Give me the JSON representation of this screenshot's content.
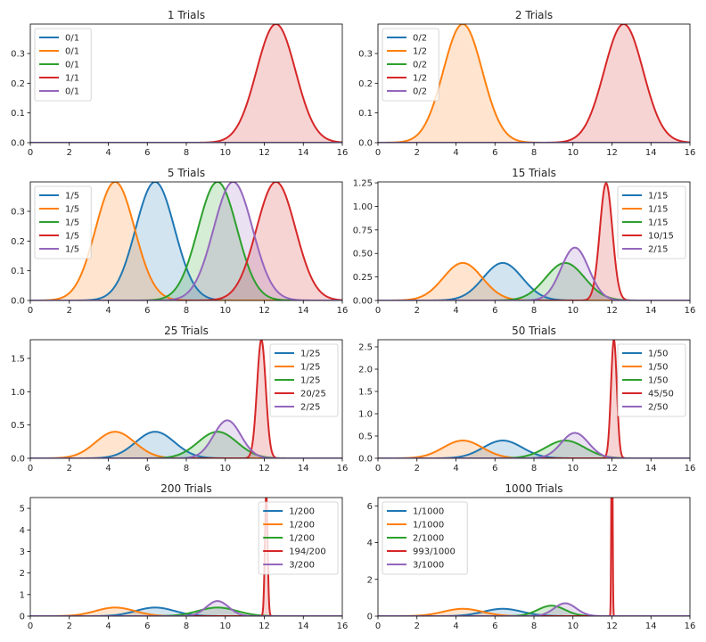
{
  "chart_data": [
    {
      "type": "area",
      "title": "1 Trials",
      "xlim": [
        0,
        16
      ],
      "ylim": [
        0,
        0.399
      ],
      "xticks": [
        "0",
        "2",
        "4",
        "6",
        "8",
        "10",
        "12",
        "14",
        "16"
      ],
      "yticks": [
        0.0,
        0.1,
        0.2,
        0.3
      ],
      "ytick_labels": [
        "0.0",
        "0.1",
        "0.2",
        "0.3"
      ],
      "legend_position": "upper-left",
      "series": [
        {
          "name": "0/1",
          "color": "#1f77b4",
          "mean": 6.4,
          "sd": 1.0,
          "visible_curve": false
        },
        {
          "name": "0/1",
          "color": "#ff7f0e",
          "mean": 4.35,
          "sd": 1.0,
          "visible_curve": false
        },
        {
          "name": "0/1",
          "color": "#2ca02c",
          "mean": 9.6,
          "sd": 1.0,
          "visible_curve": false
        },
        {
          "name": "1/1",
          "color": "#d62728",
          "mean": 12.6,
          "sd": 1.0,
          "visible_curve": true
        },
        {
          "name": "0/1",
          "color": "#9467bd",
          "mean": 10.4,
          "sd": 1.0,
          "visible_curve": false
        }
      ]
    },
    {
      "type": "area",
      "title": "2 Trials",
      "xlim": [
        0,
        16
      ],
      "ylim": [
        0,
        0.399
      ],
      "xticks": [
        "0",
        "2",
        "4",
        "6",
        "8",
        "10",
        "12",
        "14",
        "16"
      ],
      "yticks": [
        0.0,
        0.1,
        0.2,
        0.3
      ],
      "ytick_labels": [
        "0.0",
        "0.1",
        "0.2",
        "0.3"
      ],
      "legend_position": "upper-left",
      "series": [
        {
          "name": "0/2",
          "color": "#1f77b4",
          "mean": 6.4,
          "sd": 1.0,
          "visible_curve": false
        },
        {
          "name": "1/2",
          "color": "#ff7f0e",
          "mean": 4.35,
          "sd": 1.0,
          "visible_curve": true
        },
        {
          "name": "0/2",
          "color": "#2ca02c",
          "mean": 9.6,
          "sd": 1.0,
          "visible_curve": false
        },
        {
          "name": "1/2",
          "color": "#d62728",
          "mean": 12.6,
          "sd": 1.0,
          "visible_curve": true
        },
        {
          "name": "0/2",
          "color": "#9467bd",
          "mean": 10.4,
          "sd": 1.0,
          "visible_curve": false
        }
      ]
    },
    {
      "type": "area",
      "title": "5 Trials",
      "xlim": [
        0,
        16
      ],
      "ylim": [
        0,
        0.399
      ],
      "xticks": [
        "0",
        "2",
        "4",
        "6",
        "8",
        "10",
        "12",
        "14",
        "16"
      ],
      "yticks": [
        0.0,
        0.1,
        0.2,
        0.3
      ],
      "ytick_labels": [
        "0.0",
        "0.1",
        "0.2",
        "0.3"
      ],
      "legend_position": "upper-left",
      "series": [
        {
          "name": "1/5",
          "color": "#1f77b4",
          "mean": 6.4,
          "sd": 1.0,
          "visible_curve": true
        },
        {
          "name": "1/5",
          "color": "#ff7f0e",
          "mean": 4.35,
          "sd": 1.0,
          "visible_curve": true
        },
        {
          "name": "1/5",
          "color": "#2ca02c",
          "mean": 9.6,
          "sd": 1.0,
          "visible_curve": true
        },
        {
          "name": "1/5",
          "color": "#d62728",
          "mean": 12.6,
          "sd": 1.0,
          "visible_curve": true
        },
        {
          "name": "1/5",
          "color": "#9467bd",
          "mean": 10.4,
          "sd": 1.0,
          "visible_curve": true
        }
      ]
    },
    {
      "type": "area",
      "title": "15 Trials",
      "xlim": [
        0,
        16
      ],
      "ylim": [
        0,
        1.26
      ],
      "xticks": [
        "0",
        "2",
        "4",
        "6",
        "8",
        "10",
        "12",
        "14",
        "16"
      ],
      "yticks": [
        0.0,
        0.25,
        0.5,
        0.75,
        1.0,
        1.25
      ],
      "ytick_labels": [
        "0.00",
        "0.25",
        "0.50",
        "0.75",
        "1.00",
        "1.25"
      ],
      "legend_position": "upper-right",
      "series": [
        {
          "name": "1/15",
          "color": "#1f77b4",
          "mean": 6.4,
          "sd": 1.0,
          "visible_curve": true
        },
        {
          "name": "1/15",
          "color": "#ff7f0e",
          "mean": 4.35,
          "sd": 1.0,
          "visible_curve": true
        },
        {
          "name": "1/15",
          "color": "#2ca02c",
          "mean": 9.6,
          "sd": 1.0,
          "visible_curve": true
        },
        {
          "name": "10/15",
          "color": "#d62728",
          "mean": 11.7,
          "sd": 0.32,
          "visible_curve": true
        },
        {
          "name": "2/15",
          "color": "#9467bd",
          "mean": 10.1,
          "sd": 0.71,
          "visible_curve": true
        }
      ]
    },
    {
      "type": "area",
      "title": "25 Trials",
      "xlim": [
        0,
        16
      ],
      "ylim": [
        0,
        1.78
      ],
      "xticks": [
        "0",
        "2",
        "4",
        "6",
        "8",
        "10",
        "12",
        "14",
        "16"
      ],
      "yticks": [
        0.0,
        0.5,
        1.0,
        1.5
      ],
      "ytick_labels": [
        "0.0",
        "0.5",
        "1.0",
        "1.5"
      ],
      "legend_position": "upper-right",
      "series": [
        {
          "name": "1/25",
          "color": "#1f77b4",
          "mean": 6.4,
          "sd": 1.0,
          "visible_curve": true
        },
        {
          "name": "1/25",
          "color": "#ff7f0e",
          "mean": 4.35,
          "sd": 1.0,
          "visible_curve": true
        },
        {
          "name": "1/25",
          "color": "#2ca02c",
          "mean": 9.6,
          "sd": 1.0,
          "visible_curve": true
        },
        {
          "name": "20/25",
          "color": "#d62728",
          "mean": 11.85,
          "sd": 0.224,
          "visible_curve": true
        },
        {
          "name": "2/25",
          "color": "#9467bd",
          "mean": 10.1,
          "sd": 0.7,
          "visible_curve": true
        }
      ]
    },
    {
      "type": "area",
      "title": "50 Trials",
      "xlim": [
        0,
        16
      ],
      "ylim": [
        0,
        2.66
      ],
      "xticks": [
        "0",
        "2",
        "4",
        "6",
        "8",
        "10",
        "12",
        "14",
        "16"
      ],
      "yticks": [
        0.0,
        0.5,
        1.0,
        1.5,
        2.0,
        2.5
      ],
      "ytick_labels": [
        "0.0",
        "0.5",
        "1.0",
        "1.5",
        "2.0",
        "2.5"
      ],
      "legend_position": "upper-right",
      "series": [
        {
          "name": "1/50",
          "color": "#1f77b4",
          "mean": 6.4,
          "sd": 1.0,
          "visible_curve": true
        },
        {
          "name": "1/50",
          "color": "#ff7f0e",
          "mean": 4.35,
          "sd": 1.0,
          "visible_curve": true
        },
        {
          "name": "1/50",
          "color": "#2ca02c",
          "mean": 9.6,
          "sd": 1.0,
          "visible_curve": true
        },
        {
          "name": "45/50",
          "color": "#d62728",
          "mean": 12.1,
          "sd": 0.15,
          "visible_curve": true
        },
        {
          "name": "2/50",
          "color": "#9467bd",
          "mean": 10.1,
          "sd": 0.7,
          "visible_curve": true
        }
      ]
    },
    {
      "type": "area",
      "title": "200 Trials",
      "xlim": [
        0,
        16
      ],
      "ylim": [
        0,
        5.5
      ],
      "xticks": [
        "0",
        "2",
        "4",
        "6",
        "8",
        "10",
        "12",
        "14",
        "16"
      ],
      "yticks": [
        0,
        1,
        2,
        3,
        4,
        5
      ],
      "ytick_labels": [
        "0",
        "1",
        "2",
        "3",
        "4",
        "5"
      ],
      "legend_position": "upper-right",
      "series": [
        {
          "name": "1/200",
          "color": "#1f77b4",
          "mean": 6.4,
          "sd": 1.0,
          "visible_curve": true
        },
        {
          "name": "1/200",
          "color": "#ff7f0e",
          "mean": 4.35,
          "sd": 1.0,
          "visible_curve": true
        },
        {
          "name": "1/200",
          "color": "#2ca02c",
          "mean": 9.6,
          "sd": 1.0,
          "visible_curve": true
        },
        {
          "name": "194/200",
          "color": "#d62728",
          "mean": 12.1,
          "sd": 0.07,
          "visible_curve": true
        },
        {
          "name": "3/200",
          "color": "#9467bd",
          "mean": 9.6,
          "sd": 0.57,
          "visible_curve": true
        }
      ]
    },
    {
      "type": "area",
      "title": "1000 Trials",
      "xlim": [
        0,
        16
      ],
      "ylim": [
        0,
        6.45
      ],
      "xticks": [
        "0",
        "2",
        "4",
        "6",
        "8",
        "10",
        "12",
        "14",
        "16"
      ],
      "yticks": [
        0,
        2,
        4,
        6
      ],
      "ytick_labels": [
        "0",
        "2",
        "4",
        "6"
      ],
      "legend_position": "upper-left",
      "series": [
        {
          "name": "1/1000",
          "color": "#1f77b4",
          "mean": 6.4,
          "sd": 1.0,
          "visible_curve": true
        },
        {
          "name": "1/1000",
          "color": "#ff7f0e",
          "mean": 4.35,
          "sd": 1.0,
          "visible_curve": true
        },
        {
          "name": "2/1000",
          "color": "#2ca02c",
          "mean": 8.9,
          "sd": 0.7,
          "visible_curve": true
        },
        {
          "name": "993/1000",
          "color": "#d62728",
          "mean": 12.0,
          "sd": 0.03,
          "visible_curve": true
        },
        {
          "name": "3/1000",
          "color": "#9467bd",
          "mean": 9.6,
          "sd": 0.57,
          "visible_curve": true
        }
      ]
    }
  ]
}
